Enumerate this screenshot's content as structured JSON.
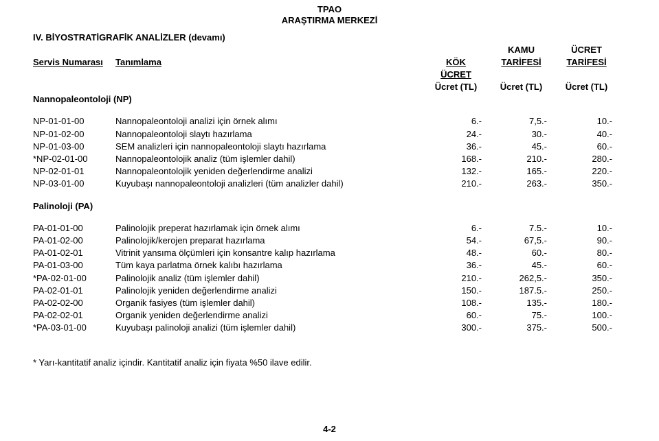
{
  "header": {
    "company": "TPAO",
    "subtitle": "ARAŞTIRMA MERKEZİ"
  },
  "section_heading": "IV. BİYOSTRATİGRAFİK ANALİZLER (devamı)",
  "columns": {
    "service_no": "Servis Numarası",
    "definition": "Tanımlama",
    "root_price": "KÖK ÜCRET",
    "public_tariff_top": "KAMU",
    "public_tariff_bottom": "TARİFESİ",
    "price_tariff_top": "ÜCRET",
    "price_tariff_bottom": "TARİFESİ",
    "unit": "Ücret (TL)"
  },
  "groups": [
    {
      "title": "Nannopaleontoloji (NP)",
      "rows": [
        {
          "code": "NP-01-01-00",
          "desc": "Nannopaleontoloji analizi için örnek alımı",
          "c1": "6.-",
          "c2": "7,5.-",
          "c3": "10.-"
        },
        {
          "code": "NP-01-02-00",
          "desc": "Nannopaleontoloji slaytı hazırlama",
          "c1": "24.-",
          "c2": "30.-",
          "c3": "40.-"
        },
        {
          "code": "NP-01-03-00",
          "desc": "SEM analizleri için nannopaleontoloji slaytı hazırlama",
          "c1": "36.-",
          "c2": "45.-",
          "c3": "60.-"
        },
        {
          "code": "*NP-02-01-00",
          "desc": "Nannopaleontolojik analiz (tüm işlemler dahil)",
          "c1": "168.-",
          "c2": "210.-",
          "c3": "280.-"
        },
        {
          "code": "NP-02-01-01",
          "desc": "Nannopaleontolojik yeniden değerlendirme analizi",
          "c1": "132.-",
          "c2": "165.-",
          "c3": "220.-"
        },
        {
          "code": "NP-03-01-00",
          "desc": "Kuyubaşı nannopaleontoloji analizleri (tüm analizler dahil)",
          "c1": "210.-",
          "c2": "263.-",
          "c3": "350.-"
        }
      ]
    },
    {
      "title": "Palinoloji (PA)",
      "rows": [
        {
          "code": "PA-01-01-00",
          "desc": "Palinolojik preperat hazırlamak için örnek alımı",
          "c1": "6.-",
          "c2": "7.5.-",
          "c3": "10.-"
        },
        {
          "code": "PA-01-02-00",
          "desc": "Palinolojik/kerojen preparat hazırlama",
          "c1": "54.-",
          "c2": "67,5.-",
          "c3": "90.-"
        },
        {
          "code": "PA-01-02-01",
          "desc": "Vitrinit yansıma ölçümleri için konsantre kalıp hazırlama",
          "c1": "48.-",
          "c2": "60.-",
          "c3": "80.-"
        },
        {
          "code": "PA-01-03-00",
          "desc": "Tüm kaya parlatma örnek kalıbı hazırlama",
          "c1": "36.-",
          "c2": "45.-",
          "c3": "60.-"
        },
        {
          "code": "*PA-02-01-00",
          "desc": "Palinolojik analiz (tüm işlemler dahil)",
          "c1": "210.-",
          "c2": "262,5.-",
          "c3": "350.-"
        },
        {
          "code": "PA-02-01-01",
          "desc": "Palinolojik yeniden değerlendirme analizi",
          "c1": "150.-",
          "c2": "187.5.-",
          "c3": "250.-"
        },
        {
          "code": "PA-02-02-00",
          "desc": "Organik fasiyes (tüm işlemler dahil)",
          "c1": "108.-",
          "c2": "135.-",
          "c3": "180.-"
        },
        {
          "code": "PA-02-02-01",
          "desc": "Organik yeniden değerlendirme analizi",
          "c1": "60.-",
          "c2": "75.-",
          "c3": "100.-"
        },
        {
          "code": "*PA-03-01-00",
          "desc": "Kuyubaşı palinoloji analizi (tüm işlemler dahil)",
          "c1": "300.-",
          "c2": "375.-",
          "c3": "500.-"
        }
      ]
    }
  ],
  "footnote": "* Yarı-kantitatif analiz içindir. Kantitatif analiz için fiyata %50 ilave edilir.",
  "page_number": "4-2"
}
